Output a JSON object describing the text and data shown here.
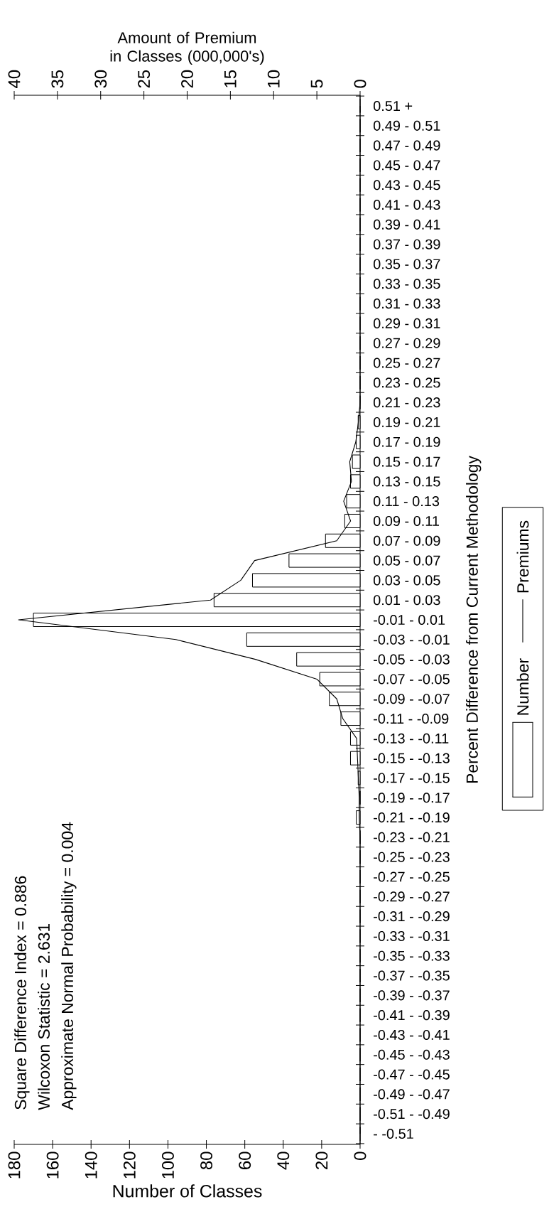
{
  "chart_data": {
    "type": "bar",
    "orientation": "horizontal",
    "xlabel": "Number of Classes",
    "x2label": "Amount of Premium in Classes (000,000's)",
    "ylabel": "Percent Difference from Current Methodology",
    "categories": [
      "0.51 +",
      "0.49 - 0.51",
      "0.47 - 0.49",
      "0.45 - 0.47",
      "0.43 - 0.45",
      "0.41 - 0.43",
      "0.39 - 0.41",
      "0.37 - 0.39",
      "0.35 - 0.37",
      "0.33 - 0.35",
      "0.31 - 0.33",
      "0.29 - 0.31",
      "0.27 - 0.29",
      "0.25 - 0.27",
      "0.23 - 0.25",
      "0.21 - 0.23",
      "0.19 - 0.21",
      "0.17 - 0.19",
      "0.15 - 0.17",
      "0.13 - 0.15",
      "0.11 - 0.13",
      "0.09 - 0.11",
      "0.07 - 0.09",
      "0.05 - 0.07",
      "0.03 - 0.05",
      "0.01 - 0.03",
      "-0.01 - 0.01",
      "-0.03 - -0.01",
      "-0.05 - -0.03",
      "-0.07 - -0.05",
      "-0.09 - -0.07",
      "-0.11 - -0.09",
      "-0.13 - -0.11",
      "-0.15 - -0.13",
      "-0.17 - -0.15",
      "-0.19 - -0.17",
      "-0.21 - -0.19",
      "-0.23 - -0.21",
      "-0.25 - -0.23",
      "-0.27 - -0.25",
      "-0.29 - -0.27",
      "-0.31 - -0.29",
      "-0.33 - -0.31",
      "-0.35 - -0.33",
      "-0.37 - -0.35",
      "-0.39 - -0.37",
      "-0.41 - -0.39",
      "-0.43 - -0.41",
      "-0.45 - -0.43",
      "-0.47 - -0.45",
      "-0.49 - -0.47",
      "-0.51 - -0.49",
      "- -0.51"
    ],
    "series": [
      {
        "name": "Number",
        "color": "#ffffff",
        "values": [
          0,
          0,
          0,
          0,
          0,
          0,
          0,
          0,
          0,
          0,
          0,
          0,
          0,
          0,
          0,
          0,
          1,
          2,
          4,
          5,
          7,
          8,
          18,
          37,
          56,
          76,
          170,
          59,
          33,
          21,
          16,
          10,
          5,
          5,
          1,
          0,
          2,
          0,
          0,
          0,
          0,
          0,
          0,
          0,
          0,
          0,
          0,
          0,
          0,
          0,
          0,
          0,
          0
        ]
      },
      {
        "name": "Premiums",
        "type": "line",
        "axis": "x2",
        "color": "#000000",
        "values": [
          0,
          0,
          0,
          0,
          0,
          0,
          0,
          0,
          0,
          0,
          0,
          0,
          0,
          0,
          0,
          0,
          0.2,
          0.5,
          1.2,
          1.0,
          1.9,
          1.1,
          2.7,
          12.2,
          13.8,
          17.3,
          39.5,
          21.3,
          12.1,
          5.0,
          2.7,
          2.0,
          0.4,
          0.3,
          0.2,
          0.1,
          0.1,
          0,
          0,
          0,
          0,
          0,
          0,
          0,
          0,
          0,
          0,
          0,
          0,
          0,
          0,
          0,
          0
        ]
      }
    ],
    "xlim": [
      180,
      0
    ],
    "xticks": [
      0,
      20,
      40,
      60,
      80,
      100,
      120,
      140,
      160,
      180
    ],
    "x2lim": [
      40,
      0
    ],
    "x2ticks": [
      0,
      5,
      10,
      15,
      20,
      25,
      30,
      35,
      40
    ],
    "annotations": [
      "Square Difference Index = 0.886",
      "Wilcoxon Statistic = 2.631",
      "Approximate Normal Probability = 0.004"
    ],
    "marker": "none",
    "legend": "right"
  }
}
